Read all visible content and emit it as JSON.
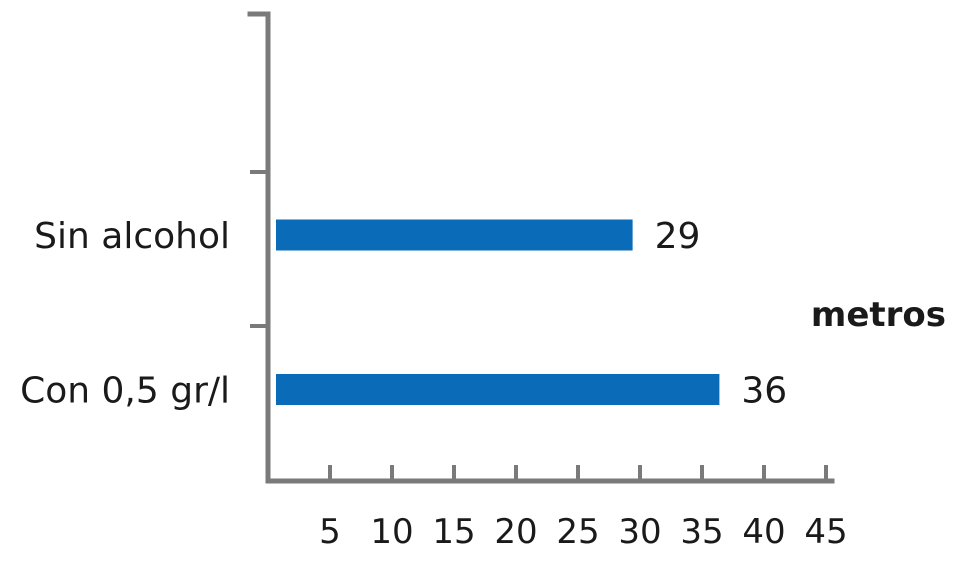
{
  "chart_data": {
    "type": "bar",
    "orientation": "horizontal",
    "categories": [
      "Sin alcohol",
      "Con 0,5 gr/l"
    ],
    "values": [
      29,
      36
    ],
    "data_labels": [
      "29",
      "36"
    ],
    "xlabel": "metros",
    "ylabel": "",
    "xticks": [
      5,
      10,
      15,
      20,
      25,
      30,
      35,
      40,
      45
    ],
    "xtick_labels": [
      "5",
      "10",
      "15",
      "20",
      "25",
      "30",
      "35",
      "40",
      "45"
    ],
    "xlim": [
      0,
      45
    ],
    "grid": false,
    "bar_color": "#0a6cb8"
  }
}
